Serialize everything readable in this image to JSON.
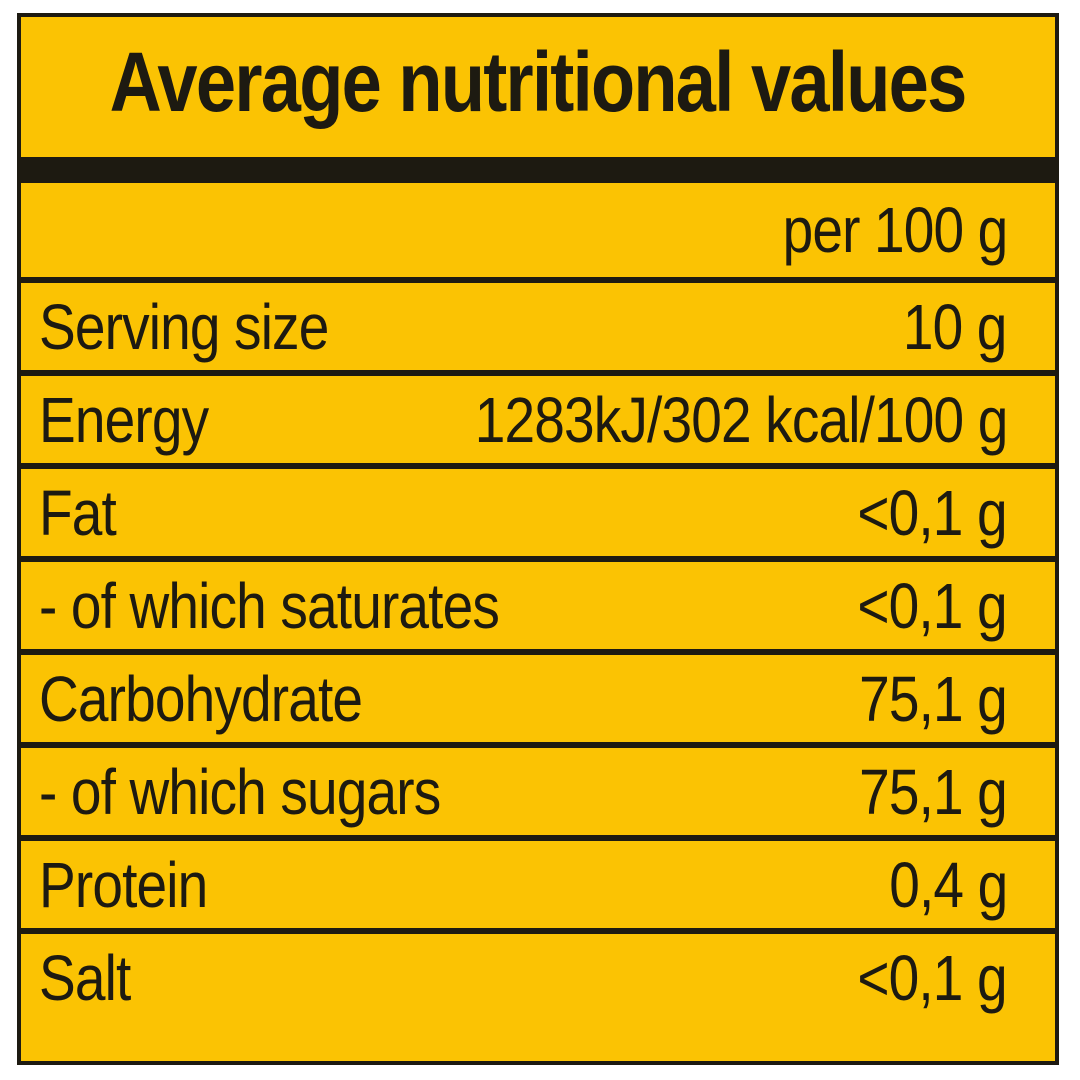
{
  "title": "Average nutritional values",
  "header_value": "per 100 g",
  "rows": [
    {
      "label": "Serving size",
      "value": "10 g"
    },
    {
      "label": "Energy",
      "value": "1283kJ/302 kcal/100 g"
    },
    {
      "label": "Fat",
      "value": "<0,1 g"
    },
    {
      "label": "- of which saturates",
      "value": "<0,1 g"
    },
    {
      "label": "Carbohydrate",
      "value": "75,1 g"
    },
    {
      "label": "- of which sugars",
      "value": "75,1 g"
    },
    {
      "label": "Protein",
      "value": "0,4 g"
    },
    {
      "label": "Salt",
      "value": "<0,1 g"
    }
  ],
  "colors": {
    "background": "#fbc303",
    "ink": "#1d1a11"
  }
}
